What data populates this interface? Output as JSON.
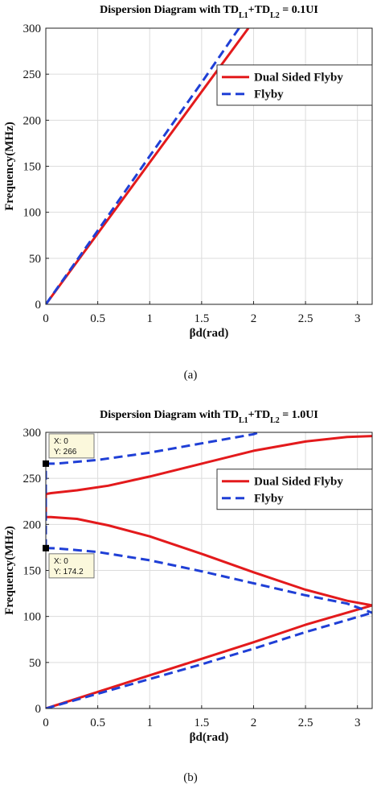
{
  "chart_data": [
    {
      "type": "line",
      "title": "Dispersion Diagram with TD",
      "title_sub1": "L1",
      "title_plus": "+TD",
      "title_sub2": "L2",
      "title_end": " = 0.1UI",
      "xlabel": "βd(rad)",
      "ylabel": "Frequency(MHz)",
      "xlim": [
        0,
        3.1416
      ],
      "ylim": [
        0,
        300
      ],
      "xticks": [
        "0",
        "0.5",
        "1",
        "1.5",
        "2",
        "2.5",
        "3"
      ],
      "yticks": [
        "0",
        "50",
        "100",
        "150",
        "200",
        "250",
        "300"
      ],
      "grid": true,
      "legend_position": "top-right",
      "caption": "(a)",
      "series": [
        {
          "name": "Dual Sided Flyby",
          "color": "#e31a1c",
          "style": "solid",
          "segments": [
            {
              "x": [
                0,
                0.5,
                1.0,
                1.5,
                1.95
              ],
              "y": [
                0,
                77,
                154,
                231,
                300
              ]
            }
          ]
        },
        {
          "name": "Flyby",
          "color": "#1f3fd6",
          "style": "dashed",
          "segments": [
            {
              "x": [
                0,
                0.5,
                1.0,
                1.5,
                1.86
              ],
              "y": [
                0,
                80,
                161,
                241,
                300
              ]
            }
          ]
        }
      ],
      "datatips": []
    },
    {
      "type": "line",
      "title": "Dispersion Diagram with TD",
      "title_sub1": "L1",
      "title_plus": "+TD",
      "title_sub2": "L2",
      "title_end": " = 1.0UI",
      "xlabel": "βd(rad)",
      "ylabel": "Frequency(MHz)",
      "xlim": [
        0,
        3.1416
      ],
      "ylim": [
        0,
        300
      ],
      "xticks": [
        "0",
        "0.5",
        "1",
        "1.5",
        "2",
        "2.5",
        "3"
      ],
      "yticks": [
        "0",
        "50",
        "100",
        "150",
        "200",
        "250",
        "300"
      ],
      "grid": true,
      "legend_position": "top-right",
      "caption": "(b)",
      "series": [
        {
          "name": "Dual Sided Flyby",
          "color": "#e31a1c",
          "style": "solid",
          "segments": [
            {
              "x": [
                0,
                0.5,
                1.0,
                1.5,
                2.0,
                2.5,
                3.1416
              ],
              "y": [
                0,
                18,
                36,
                54,
                72,
                91,
                112
              ]
            },
            {
              "x": [
                0,
                0.05,
                0.3,
                0.6,
                1.0,
                1.5,
                2.0,
                2.5,
                2.9,
                3.1416
              ],
              "y": [
                208,
                208,
                206,
                199,
                187,
                168,
                148,
                129,
                117,
                112
              ]
            },
            {
              "x": [
                0,
                0.05,
                0.3,
                0.6,
                1.0,
                1.5,
                2.0,
                2.5,
                2.9,
                3.1416
              ],
              "y": [
                233,
                234,
                237,
                242,
                252,
                266,
                280,
                290,
                295,
                296
              ]
            },
            {
              "x": [
                0,
                0
              ],
              "y": [
                208,
                233
              ]
            }
          ]
        },
        {
          "name": "Flyby",
          "color": "#1f3fd6",
          "style": "dashed",
          "segments": [
            {
              "x": [
                0,
                0.5,
                1.0,
                1.5,
                2.0,
                2.5,
                3.1416
              ],
              "y": [
                0,
                16,
                32,
                48,
                65,
                83,
                104
              ]
            },
            {
              "x": [
                0,
                0.1,
                0.5,
                1.0,
                1.5,
                2.0,
                2.5,
                2.9,
                3.1416
              ],
              "y": [
                174.2,
                174,
                170,
                161,
                149,
                136,
                123,
                114,
                104
              ]
            },
            {
              "x": [
                0,
                0.1,
                0.5,
                1.0,
                1.5,
                2.0,
                2.05
              ],
              "y": [
                266,
                266,
                270,
                278,
                288,
                298,
                300
              ]
            },
            {
              "x": [
                0,
                0
              ],
              "y": [
                174.2,
                266
              ]
            }
          ]
        }
      ],
      "datatips": [
        {
          "x": 0,
          "y": 266,
          "label_x": "X: 0",
          "label_y": "Y: 266",
          "placement": "above"
        },
        {
          "x": 0,
          "y": 174.2,
          "label_x": "X: 0",
          "label_y": "Y: 174.2",
          "placement": "below"
        }
      ]
    }
  ]
}
